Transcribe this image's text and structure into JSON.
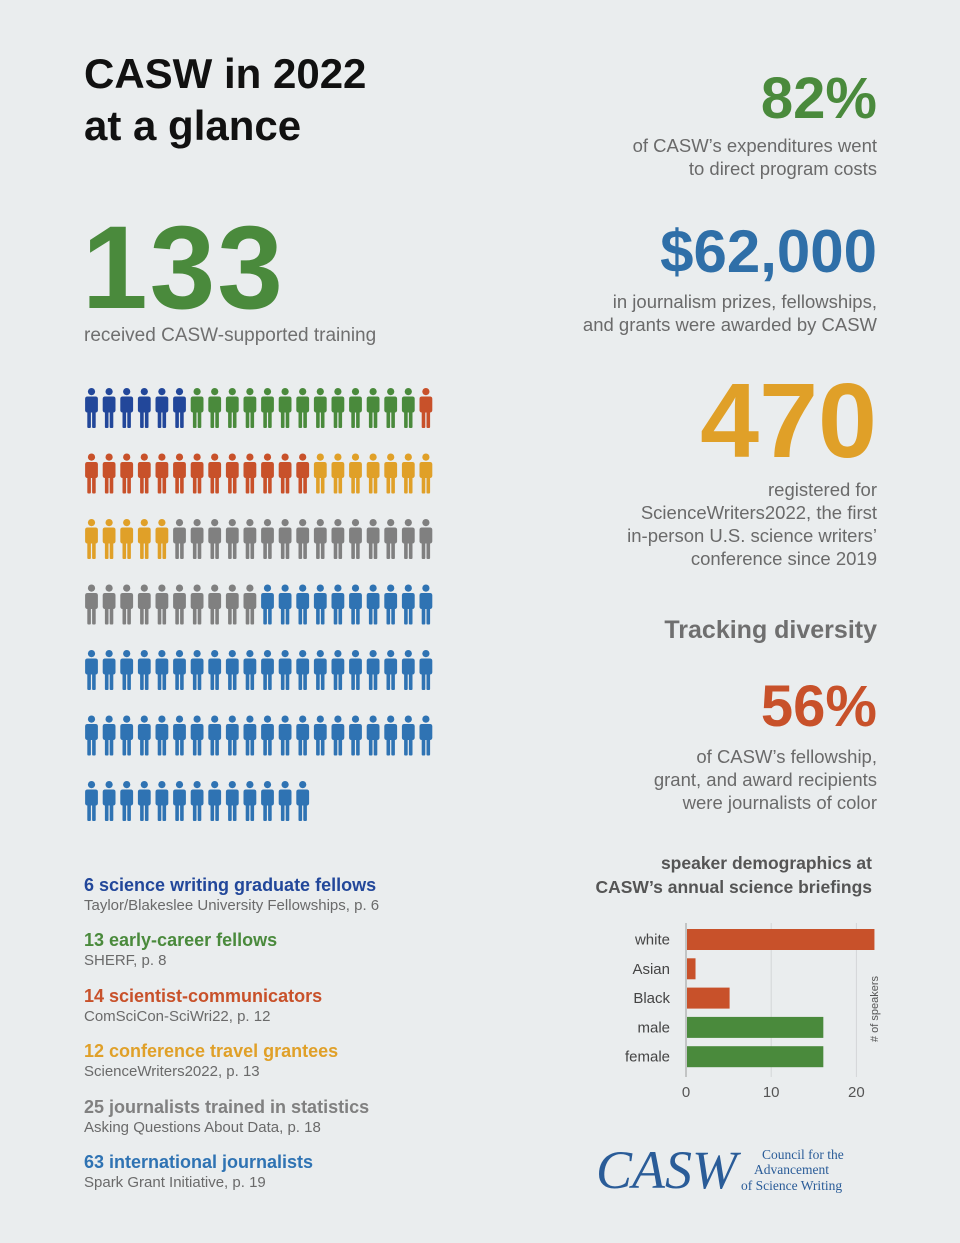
{
  "title": {
    "line1": "CASW in 2022",
    "line2": "at a glance"
  },
  "training": {
    "value": "133",
    "label": "received CASW-supported training"
  },
  "stats": {
    "expenditures": {
      "value": "82%",
      "line1": "of CASW’s expenditures went",
      "line2": "to direct program costs",
      "color": "#4a8a3c"
    },
    "prizes": {
      "value": "$62,000",
      "line1": "in journalism prizes, fellowships,",
      "line2": "and grants were awarded by CASW",
      "color": "#2f6fa8"
    },
    "registered": {
      "value": "470",
      "line1": "registered for",
      "line2": "ScienceWriters2022, the first",
      "line3": "in-person U.S. science writers’",
      "line4": "conference since 2019",
      "color": "#e0a028"
    },
    "diversity_heading": "Tracking diversity",
    "diversity": {
      "value": "56%",
      "line1": "of CASW’s fellowship,",
      "line2": "grant, and award recipients",
      "line3": "were journalists of color",
      "color": "#c8512a"
    }
  },
  "people_groups": [
    {
      "main": "6 science writing graduate fellows",
      "sub": "Taylor/Blakeslee University Fellowships, p. 6",
      "count": 6,
      "color": "#22479a"
    },
    {
      "main": "13 early-career fellows",
      "sub": "SHERF, p. 8",
      "count": 13,
      "color": "#4a8a3c"
    },
    {
      "main": "14 scientist-communicators",
      "sub": "ComSciCon-SciWri22, p. 12",
      "count": 14,
      "color": "#c8512a"
    },
    {
      "main": "12 conference travel grantees",
      "sub": "ScienceWriters2022, p. 13",
      "count": 12,
      "color": "#e0a028"
    },
    {
      "main": "25 journalists trained in statistics",
      "sub": "Asking Questions About Data, p. 18",
      "count": 25,
      "color": "#808080"
    },
    {
      "main": "63 international journalists",
      "sub": "Spark Grant Initiative, p. 19",
      "count": 63,
      "color": "#2f73b3"
    }
  ],
  "chart_data": {
    "type": "bar",
    "orientation": "horizontal",
    "title": "speaker demographics at CASW’s annual science briefings",
    "title_line1": "speaker demographics at",
    "title_line2": "CASW’s annual science briefings",
    "categories": [
      "white",
      "Asian",
      "Black",
      "male",
      "female"
    ],
    "values": [
      22,
      1,
      5,
      16,
      16
    ],
    "colors": [
      "#c8512a",
      "#c8512a",
      "#c8512a",
      "#4a8a3c",
      "#4a8a3c"
    ],
    "xlabel": "# of speakers",
    "xlim": [
      0,
      22
    ],
    "xticks": [
      0,
      10,
      20
    ],
    "grid": true
  },
  "logo": {
    "wordmark": "CASW",
    "line1": "Council for the",
    "line2": "Advancement",
    "line3": "of Science Writing",
    "color": "#2a5c98"
  }
}
